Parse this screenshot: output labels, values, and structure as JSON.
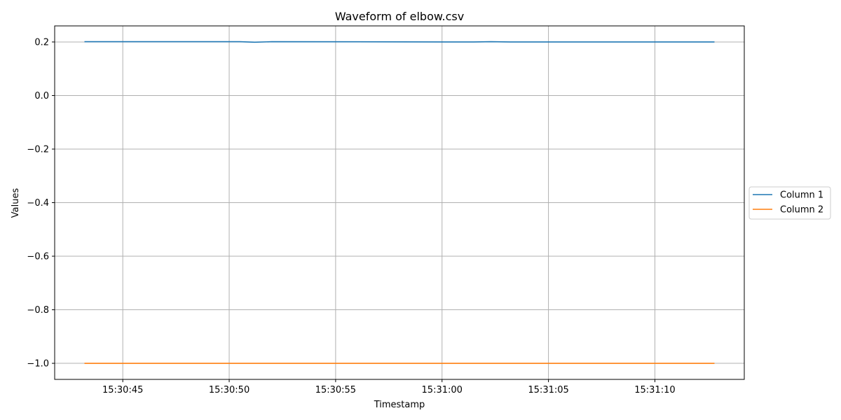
{
  "chart_data": {
    "type": "line",
    "title": "Waveform of elbow.csv",
    "xlabel": "Timestamp",
    "ylabel": "Values",
    "x_start": "15:30:43.2",
    "x_end": "15:31:12.8",
    "xlim": [
      "15:30:41.8",
      "15:31:14.2"
    ],
    "ylim": [
      -1.06,
      0.26
    ],
    "x_ticks": [
      "15:30:45",
      "15:30:50",
      "15:30:55",
      "15:31:00",
      "15:31:05",
      "15:31:10"
    ],
    "y_ticks": [
      0.2,
      0.0,
      -0.2,
      -0.4,
      -0.6,
      -0.8,
      -1.0
    ],
    "y_tick_labels": [
      "0.2",
      "0.0",
      "−0.2",
      "−0.4",
      "−0.6",
      "−0.8",
      "−1.0"
    ],
    "grid": true,
    "legend_position": "right-outside",
    "series": [
      {
        "name": "Column 1",
        "color": "#1f77b4",
        "x": [
          "15:30:43.2",
          "15:30:50.5",
          "15:30:51.2",
          "15:30:52.0",
          "15:31:01.5",
          "15:31:02.3",
          "15:31:03.2",
          "15:31:12.8"
        ],
        "values": [
          0.201,
          0.201,
          0.199,
          0.201,
          0.2,
          0.201,
          0.2,
          0.2
        ]
      },
      {
        "name": "Column 2",
        "color": "#ff7f0e",
        "x": [
          "15:30:43.2",
          "15:31:12.8"
        ],
        "values": [
          -1.0,
          -1.0
        ]
      }
    ]
  }
}
